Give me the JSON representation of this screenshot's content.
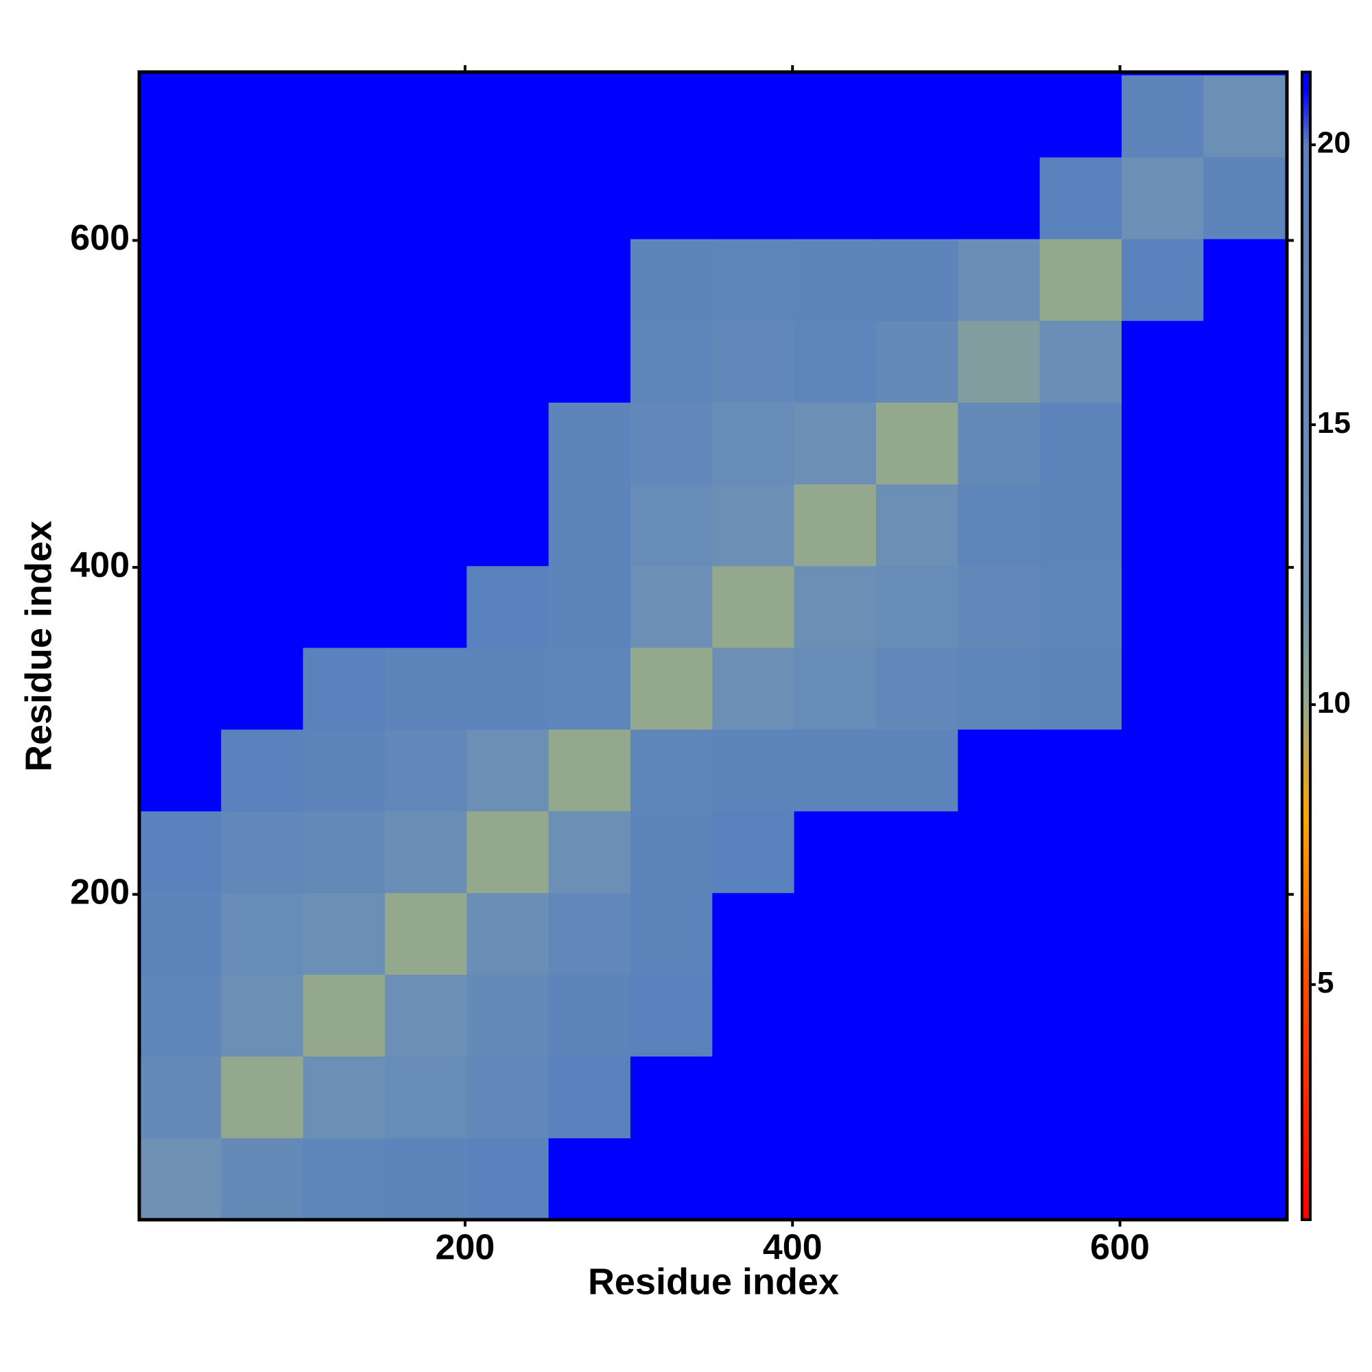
{
  "chart_data": {
    "type": "heatmap",
    "x_label": "Residue index",
    "y_label": "Residue index",
    "xbins": [
      1,
      51,
      101,
      151,
      201,
      251,
      301,
      351,
      401,
      451,
      501,
      551,
      601,
      651,
      701
    ],
    "ybins": [
      1,
      51,
      101,
      151,
      201,
      251,
      301,
      351,
      401,
      451,
      501,
      551,
      601,
      651,
      701
    ],
    "values": [
      [
        12,
        16,
        18,
        19,
        20,
        21,
        21,
        21,
        21,
        21,
        21,
        21,
        21,
        21
      ],
      [
        16,
        10,
        13,
        15,
        17,
        20,
        21,
        21,
        21,
        21,
        21,
        21,
        21,
        21
      ],
      [
        18,
        13,
        10,
        13,
        16,
        19,
        20,
        21,
        21,
        21,
        21,
        21,
        21,
        21
      ],
      [
        19,
        15,
        13,
        10,
        14,
        17,
        19,
        21,
        21,
        21,
        21,
        21,
        21,
        21
      ],
      [
        20,
        17,
        16,
        14,
        10,
        13,
        19,
        20,
        21,
        21,
        21,
        21,
        21,
        21
      ],
      [
        21,
        20,
        19,
        17,
        13,
        10,
        18,
        19,
        19,
        19,
        21,
        21,
        21,
        21
      ],
      [
        21,
        21,
        20,
        19,
        19,
        18,
        10,
        13,
        15,
        17,
        18,
        19,
        21,
        21
      ],
      [
        21,
        21,
        21,
        21,
        20,
        19,
        13,
        10,
        13,
        15,
        17,
        18,
        21,
        21
      ],
      [
        21,
        21,
        21,
        21,
        21,
        19,
        15,
        13,
        10,
        13,
        18,
        19,
        21,
        21
      ],
      [
        21,
        21,
        21,
        21,
        21,
        19,
        17,
        15,
        13,
        10,
        16,
        19,
        21,
        21
      ],
      [
        21,
        21,
        21,
        21,
        21,
        21,
        18,
        17,
        18,
        16,
        11,
        14,
        21,
        21
      ],
      [
        21,
        21,
        21,
        21,
        21,
        21,
        19,
        18,
        19,
        19,
        14,
        10,
        20,
        21
      ],
      [
        21,
        21,
        21,
        21,
        21,
        21,
        21,
        21,
        21,
        21,
        21,
        20,
        13,
        19
      ],
      [
        21,
        21,
        21,
        21,
        21,
        21,
        21,
        21,
        21,
        21,
        21,
        21,
        19,
        13
      ]
    ],
    "xlim": [
      1,
      702
    ],
    "ylim": [
      1,
      703
    ],
    "xticks": [
      200,
      400,
      600
    ],
    "yticks": [
      200,
      400,
      600
    ],
    "colorbar": {
      "lim": [
        0.8,
        21.3
      ],
      "ticks": [
        5,
        10,
        15,
        20
      ]
    },
    "color_stops": [
      {
        "value": 0.8,
        "color": "#ff0000"
      },
      {
        "value": 5,
        "color": "#ff4a00"
      },
      {
        "value": 8,
        "color": "#ffa500"
      },
      {
        "value": 10,
        "color": "#93a88c"
      },
      {
        "value": 12,
        "color": "#6f92b4"
      },
      {
        "value": 20,
        "color": "#5a82bc"
      },
      {
        "value": 21,
        "color": "#0000ff"
      }
    ]
  }
}
